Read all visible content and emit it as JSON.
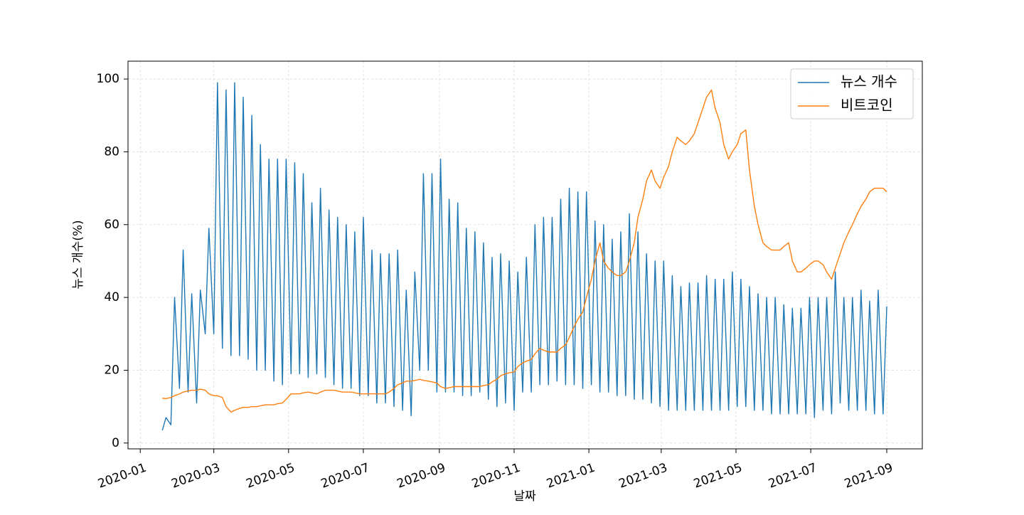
{
  "chart_data": {
    "type": "line",
    "x": [
      "2020-01-19",
      "2020-01-22",
      "2020-01-26",
      "2020-01-29",
      "2020-02-02",
      "2020-02-05",
      "2020-02-09",
      "2020-02-12",
      "2020-02-16",
      "2020-02-19",
      "2020-02-23",
      "2020-02-26",
      "2020-03-01",
      "2020-03-04",
      "2020-03-08",
      "2020-03-11",
      "2020-03-15",
      "2020-03-18",
      "2020-03-22",
      "2020-03-25",
      "2020-03-29",
      "2020-04-01",
      "2020-04-05",
      "2020-04-08",
      "2020-04-12",
      "2020-04-15",
      "2020-04-19",
      "2020-04-22",
      "2020-04-26",
      "2020-04-29",
      "2020-05-03",
      "2020-05-06",
      "2020-05-10",
      "2020-05-13",
      "2020-05-17",
      "2020-05-20",
      "2020-05-24",
      "2020-05-27",
      "2020-05-31",
      "2020-06-03",
      "2020-06-07",
      "2020-06-10",
      "2020-06-14",
      "2020-06-17",
      "2020-06-21",
      "2020-06-24",
      "2020-06-28",
      "2020-07-01",
      "2020-07-05",
      "2020-07-08",
      "2020-07-12",
      "2020-07-15",
      "2020-07-19",
      "2020-07-22",
      "2020-07-26",
      "2020-07-29",
      "2020-08-02",
      "2020-08-05",
      "2020-08-09",
      "2020-08-12",
      "2020-08-16",
      "2020-08-19",
      "2020-08-23",
      "2020-08-26",
      "2020-08-30",
      "2020-09-02",
      "2020-09-06",
      "2020-09-09",
      "2020-09-13",
      "2020-09-16",
      "2020-09-20",
      "2020-09-23",
      "2020-09-27",
      "2020-09-30",
      "2020-10-04",
      "2020-10-07",
      "2020-10-11",
      "2020-10-14",
      "2020-10-18",
      "2020-10-21",
      "2020-10-25",
      "2020-10-28",
      "2020-11-01",
      "2020-11-04",
      "2020-11-08",
      "2020-11-11",
      "2020-11-15",
      "2020-11-18",
      "2020-11-22",
      "2020-11-25",
      "2020-11-29",
      "2020-12-02",
      "2020-12-06",
      "2020-12-09",
      "2020-12-13",
      "2020-12-16",
      "2020-12-20",
      "2020-12-23",
      "2020-12-27",
      "2020-12-30",
      "2021-01-03",
      "2021-01-06",
      "2021-01-10",
      "2021-01-13",
      "2021-01-17",
      "2021-01-20",
      "2021-01-24",
      "2021-01-27",
      "2021-01-31",
      "2021-02-03",
      "2021-02-07",
      "2021-02-10",
      "2021-02-14",
      "2021-02-17",
      "2021-02-21",
      "2021-02-24",
      "2021-02-28",
      "2021-03-03",
      "2021-03-07",
      "2021-03-10",
      "2021-03-14",
      "2021-03-17",
      "2021-03-21",
      "2021-03-24",
      "2021-03-28",
      "2021-03-31",
      "2021-04-04",
      "2021-04-07",
      "2021-04-11",
      "2021-04-14",
      "2021-04-18",
      "2021-04-21",
      "2021-04-25",
      "2021-04-28",
      "2021-05-02",
      "2021-05-05",
      "2021-05-09",
      "2021-05-12",
      "2021-05-16",
      "2021-05-19",
      "2021-05-23",
      "2021-05-26",
      "2021-05-30",
      "2021-06-02",
      "2021-06-06",
      "2021-06-09",
      "2021-06-13",
      "2021-06-16",
      "2021-06-20",
      "2021-06-23",
      "2021-06-27",
      "2021-06-30",
      "2021-07-04",
      "2021-07-07",
      "2021-07-11",
      "2021-07-14",
      "2021-07-18",
      "2021-07-21",
      "2021-07-25",
      "2021-07-28",
      "2021-08-01",
      "2021-08-04",
      "2021-08-08",
      "2021-08-11",
      "2021-08-15",
      "2021-08-18",
      "2021-08-22",
      "2021-08-25",
      "2021-08-29",
      "2021-09-01"
    ],
    "series": [
      {
        "name": "뉴스 개수",
        "color": "#1f77b4",
        "values": [
          3.5,
          7,
          5,
          40,
          15,
          53,
          14,
          41,
          11,
          42,
          30,
          59,
          30,
          99,
          26,
          97,
          24,
          99,
          24,
          95,
          23,
          90,
          20,
          82,
          20,
          78,
          17,
          78,
          16,
          78,
          19,
          77,
          19,
          74,
          18,
          66,
          19,
          70,
          18,
          64,
          16,
          62,
          15,
          60,
          15,
          58,
          13,
          62,
          13,
          53,
          11,
          52,
          11,
          52,
          10,
          53,
          9,
          42,
          7.5,
          47,
          20,
          74,
          20,
          74,
          14,
          78,
          14,
          67,
          14,
          66,
          13,
          59,
          13,
          58,
          14,
          55,
          12,
          51,
          10,
          52,
          11,
          50,
          9,
          47,
          14,
          51,
          14,
          60,
          16,
          62,
          16,
          62,
          17,
          67,
          16,
          70,
          16,
          69,
          15,
          69,
          16,
          61,
          14,
          60,
          14,
          56,
          13,
          58,
          13,
          63,
          12,
          58,
          12,
          52,
          11,
          50,
          10,
          50,
          9,
          46,
          9,
          43,
          9,
          44,
          9,
          44,
          9,
          46,
          9,
          45,
          9,
          45,
          9,
          47,
          10,
          45,
          10,
          43,
          9,
          41,
          9,
          40,
          8,
          40,
          8,
          38,
          8,
          37,
          8,
          37,
          8,
          40,
          7,
          40,
          9,
          40,
          8,
          47,
          11,
          40,
          9,
          40,
          9,
          42,
          9,
          39,
          8,
          42,
          8,
          37.5
        ]
      },
      {
        "name": "비트코인",
        "color": "#ff7f0e",
        "values": [
          12.3,
          12.2,
          12.5,
          13,
          13.5,
          14,
          14.3,
          14.5,
          14.5,
          14.8,
          14.5,
          13.5,
          13,
          13,
          12.5,
          10,
          8.5,
          9,
          9.5,
          9.8,
          9.8,
          10,
          10,
          10.2,
          10.5,
          10.5,
          10.5,
          10.8,
          11,
          12,
          13.5,
          13.5,
          13.5,
          13.8,
          14,
          13.8,
          13.5,
          14,
          14.5,
          14.5,
          14.5,
          14.3,
          14,
          14,
          14,
          13.8,
          13.5,
          13.5,
          13.5,
          13.5,
          13.5,
          13.5,
          13.5,
          14,
          15,
          16,
          16.5,
          17,
          17,
          17.2,
          17.5,
          17.2,
          17,
          16.8,
          16.5,
          15.5,
          15,
          15.2,
          15.5,
          15.5,
          15.5,
          15.5,
          15.5,
          15.5,
          15.5,
          15.8,
          16,
          16.8,
          17.5,
          18.5,
          19,
          19.3,
          19.5,
          21,
          22,
          22.5,
          23,
          24.5,
          26,
          25.5,
          25,
          25,
          25,
          26,
          27,
          29,
          32,
          34,
          36,
          40,
          45,
          50,
          55,
          50,
          48,
          47,
          46,
          46,
          47,
          50,
          55,
          62,
          67,
          72,
          75,
          72,
          70,
          73,
          76,
          80,
          84,
          83,
          82,
          83,
          85,
          88,
          92,
          95,
          97,
          92,
          88,
          82,
          78,
          80,
          82,
          85,
          86,
          75,
          65,
          60,
          55,
          54,
          53,
          53,
          53,
          54,
          55,
          50,
          47,
          47,
          48,
          49,
          50,
          50,
          49,
          47,
          45,
          48,
          52,
          55,
          58,
          60,
          63,
          65,
          67,
          69,
          70,
          70,
          70,
          69
        ]
      }
    ],
    "xlabel": "날짜",
    "ylabel": "뉴스 개수(%)",
    "xlim": [
      "2019-12-22",
      "2021-09-30"
    ],
    "xticks": [
      "2020-01",
      "2020-03",
      "2020-05",
      "2020-07",
      "2020-09",
      "2020-11",
      "2021-01",
      "2021-03",
      "2021-05",
      "2021-07",
      "2021-09"
    ],
    "ylim": [
      -1.6,
      104.9
    ],
    "yticks": [
      0,
      20,
      40,
      60,
      80,
      100
    ],
    "grid": true,
    "legend": "upper right"
  }
}
